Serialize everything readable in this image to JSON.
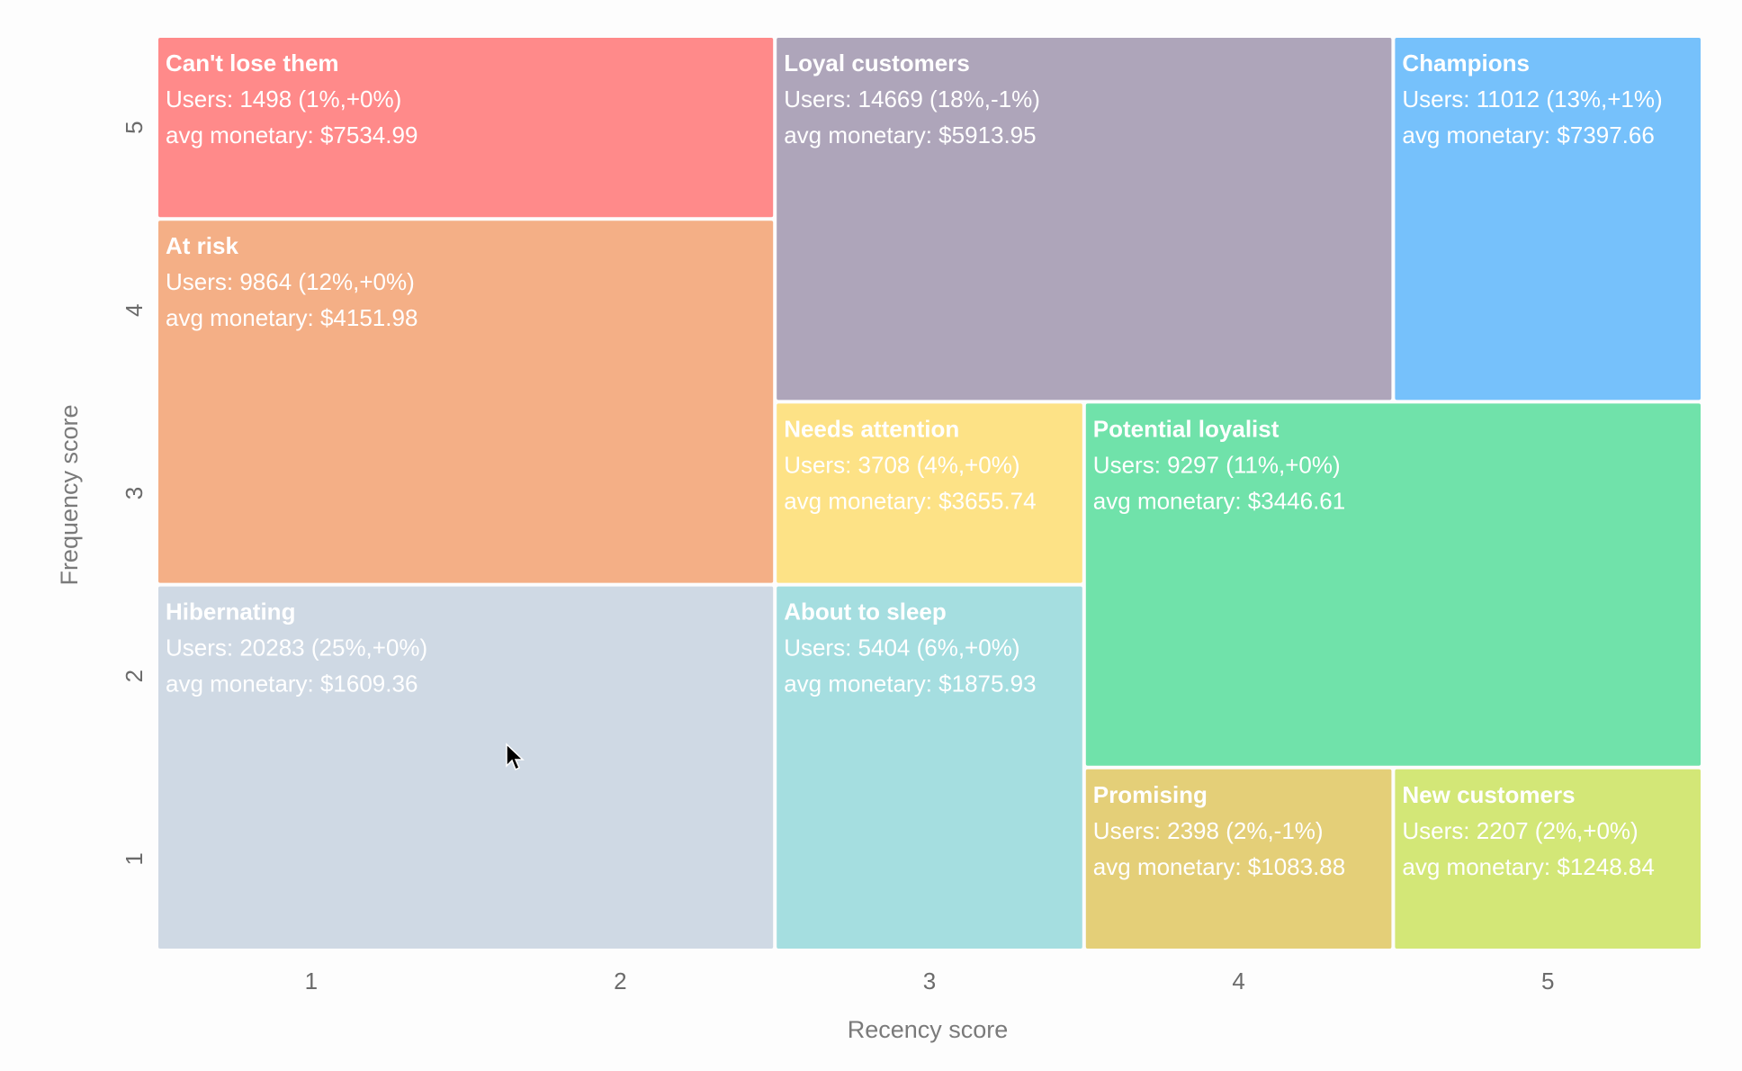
{
  "chart_data": {
    "type": "heatmap",
    "xlabel": "Recency score",
    "ylabel": "Frequency score",
    "x_ticks": [
      "1",
      "2",
      "3",
      "4",
      "5"
    ],
    "y_ticks": [
      "1",
      "2",
      "3",
      "4",
      "5"
    ],
    "xlim": [
      1,
      5
    ],
    "ylim": [
      1,
      5
    ],
    "segments": [
      {
        "name": "Can't lose them",
        "users": "Users: 1498 (1%,+0%)",
        "monetary": "avg monetary: $7534.99",
        "recency": [
          1,
          2
        ],
        "frequency": [
          5,
          5
        ],
        "color": "#ff8a8a"
      },
      {
        "name": "At risk",
        "users": "Users: 9864 (12%,+0%)",
        "monetary": "avg monetary: $4151.98",
        "recency": [
          1,
          2
        ],
        "frequency": [
          3,
          4
        ],
        "color": "#f4af86"
      },
      {
        "name": "Hibernating",
        "users": "Users: 20283 (25%,+0%)",
        "monetary": "avg monetary: $1609.36",
        "recency": [
          1,
          2
        ],
        "frequency": [
          1,
          2
        ],
        "color": "#cfd9e4"
      },
      {
        "name": "Loyal customers",
        "users": "Users: 14669 (18%,-1%)",
        "monetary": "avg monetary: $5913.95",
        "recency": [
          3,
          4
        ],
        "frequency": [
          4,
          5
        ],
        "color": "#aea5ba"
      },
      {
        "name": "Champions",
        "users": "Users: 11012 (13%,+1%)",
        "monetary": "avg monetary: $7397.66",
        "recency": [
          5,
          5
        ],
        "frequency": [
          4,
          5
        ],
        "color": "#76c1fb"
      },
      {
        "name": "Needs attention",
        "users": "Users: 3708 (4%,+0%)",
        "monetary": "avg monetary: $3655.74",
        "recency": [
          3,
          3
        ],
        "frequency": [
          3,
          3
        ],
        "color": "#fde286"
      },
      {
        "name": "Potential loyalist",
        "users": "Users: 9297 (11%,+0%)",
        "monetary": "avg monetary: $3446.61",
        "recency": [
          4,
          5
        ],
        "frequency": [
          2,
          3
        ],
        "color": "#70e2aa"
      },
      {
        "name": "About to sleep",
        "users": "Users: 5404 (6%,+0%)",
        "monetary": "avg monetary: $1875.93",
        "recency": [
          3,
          3
        ],
        "frequency": [
          1,
          2
        ],
        "color": "#a5dee0"
      },
      {
        "name": "Promising",
        "users": "Users: 2398 (2%,-1%)",
        "monetary": "avg monetary: $1083.88",
        "recency": [
          4,
          4
        ],
        "frequency": [
          1,
          1
        ],
        "color": "#e4cf78"
      },
      {
        "name": "New customers",
        "users": "Users: 2207 (2%,+0%)",
        "monetary": "avg monetary: $1248.84",
        "recency": [
          5,
          5
        ],
        "frequency": [
          1,
          1
        ],
        "color": "#d3e777"
      }
    ]
  }
}
